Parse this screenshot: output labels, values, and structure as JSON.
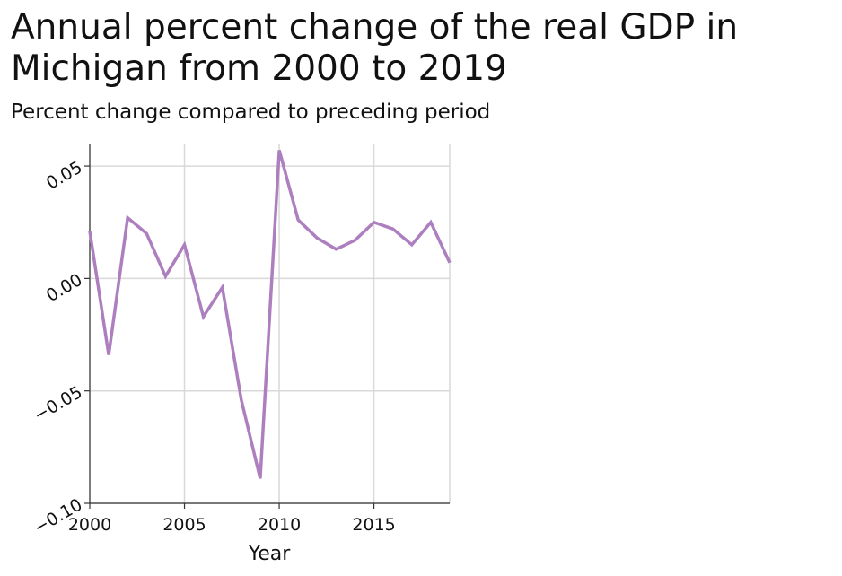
{
  "title": "Annual percent change of the real GDP in Michigan from 2000 to 2019",
  "subtitle": "Percent change compared to preceding period",
  "chart_data": {
    "type": "line",
    "title": "Annual percent change of the real GDP in Michigan from 2000 to 2019",
    "subtitle": "Percent change compared to preceding period",
    "xlabel": "Year",
    "ylabel": "",
    "xlim": [
      2000,
      2019
    ],
    "ylim": [
      -0.1,
      0.06
    ],
    "xticks": [
      2000,
      2005,
      2010,
      2015
    ],
    "xtick_labels": [
      "2000",
      "2005",
      "2010",
      "2015"
    ],
    "yticks": [
      -0.1,
      -0.05,
      0.0,
      0.05
    ],
    "ytick_labels": [
      "−0.10",
      "−0.05",
      "0.00",
      "0.05"
    ],
    "grid": true,
    "line_color": "#ad7fbf",
    "series": [
      {
        "x": [
          2000,
          2001,
          2002,
          2003,
          2004,
          2005,
          2006,
          2007,
          2008,
          2009,
          2010,
          2011,
          2012,
          2013,
          2014,
          2015,
          2016,
          2017,
          2018,
          2019
        ],
        "values": [
          0.021,
          -0.034,
          0.027,
          0.02,
          0.001,
          0.015,
          -0.017,
          -0.004,
          -0.054,
          -0.089,
          0.057,
          0.026,
          0.018,
          0.013,
          0.017,
          0.025,
          0.022,
          0.015,
          0.025,
          0.007
        ]
      }
    ]
  }
}
